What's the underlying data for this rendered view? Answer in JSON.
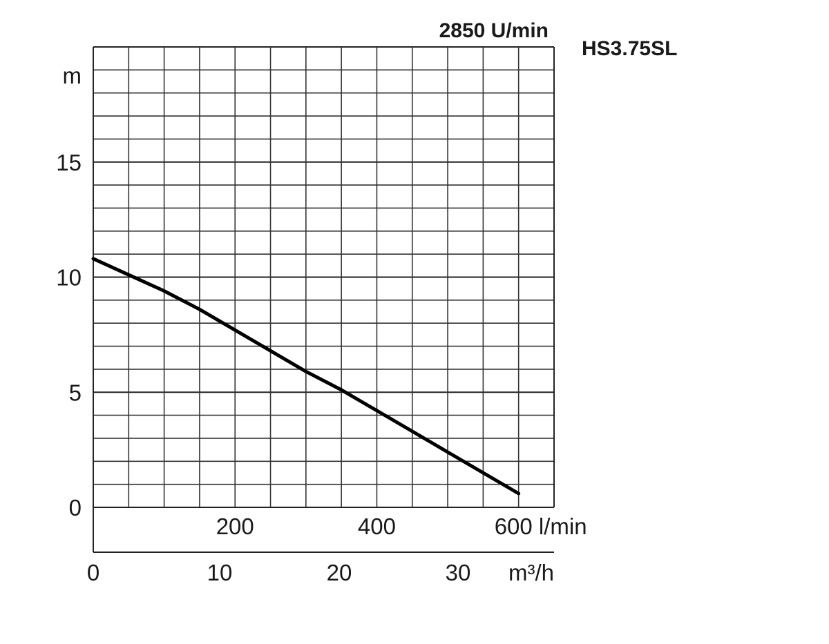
{
  "chart_data": {
    "type": "line",
    "model": "HS3.75SL",
    "speed_label": "2850 U/min",
    "y_unit": "m",
    "y_ticks": [
      0,
      5,
      10,
      15
    ],
    "ylim": [
      0,
      20
    ],
    "x_unit_primary": "l/min",
    "x_ticks_primary": [
      "200",
      "400",
      "600 l/min"
    ],
    "x_unit_secondary": "m³/h",
    "x_ticks_secondary": [
      "0",
      "10",
      "20",
      "30",
      "m³/h"
    ],
    "xlim_lpm": [
      0,
      650
    ],
    "grid": true,
    "series": [
      {
        "x": [
          0,
          50,
          100,
          150,
          200,
          250,
          300,
          350,
          400,
          450,
          500,
          550,
          600
        ],
        "y": [
          10.8,
          10.1,
          9.4,
          8.6,
          7.7,
          6.8,
          5.9,
          5.1,
          4.2,
          3.3,
          2.4,
          1.5,
          0.6
        ]
      }
    ]
  }
}
